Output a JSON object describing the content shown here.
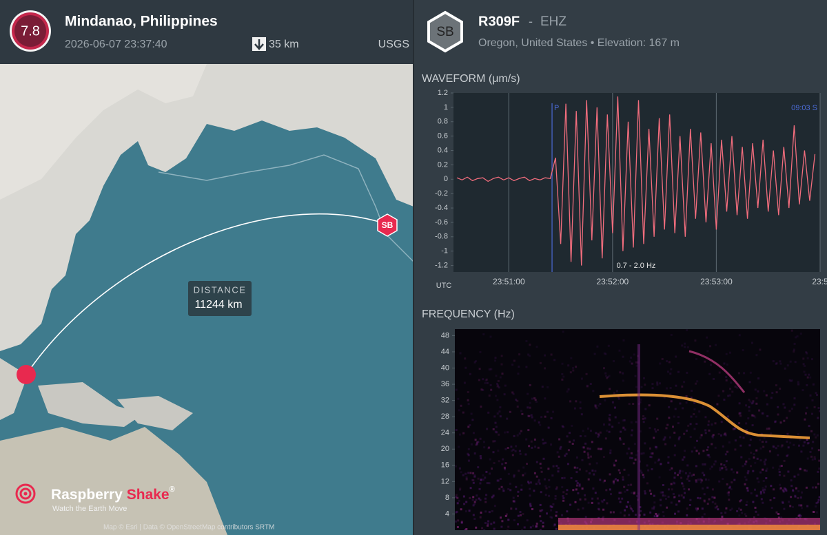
{
  "event": {
    "magnitude": "7.8",
    "location": "Mindanao, Philippines",
    "datetime": "2026-06-07 23:37:40",
    "depth": "35 km",
    "source": "USGS"
  },
  "station": {
    "badge": "SB",
    "code": "R309F",
    "separator": "-",
    "channel": "EHZ",
    "place": "Oregon, United States • Elevation: 167 m"
  },
  "map": {
    "distance_label": "DISTANCE",
    "distance": "11244 km",
    "station_marker": "SB",
    "logo_word_1": "Raspberry",
    "logo_word_2": "Shake",
    "logo_registered": "®",
    "tagline": "Watch the Earth Move",
    "attribution": "Map © Esri | Data © OpenStreetMap contributors SRTM"
  },
  "chart_data": [
    {
      "type": "line",
      "title": "WAVEFORM  (μm/s)",
      "x_axis_label": "UTC",
      "color": "#f26d7d",
      "grid": "x",
      "filter_label": "0.7 - 2.0 Hz",
      "p_label": "P",
      "p_x": 85885,
      "end_label": "09:03  S",
      "xlim": [
        85828,
        86040
      ],
      "xticks": [
        {
          "value": 85860,
          "label": "23:51:00"
        },
        {
          "value": 85920,
          "label": "23:52:00"
        },
        {
          "value": 85980,
          "label": "23:53:00"
        },
        {
          "value": 86040,
          "label": "23:5"
        }
      ],
      "ylim": [
        -1.29,
        1.2
      ],
      "yticks": [
        1.2,
        1,
        0.8,
        0.6,
        0.4,
        0.2,
        0,
        -0.2,
        -0.4,
        -0.6,
        -0.8,
        -1,
        -1.2
      ],
      "x": [
        85830,
        85833,
        85836,
        85839,
        85842,
        85845,
        85848,
        85851,
        85854,
        85857,
        85860,
        85863,
        85866,
        85869,
        85872,
        85875,
        85878,
        85881,
        85884,
        85887,
        85890,
        85893,
        85896,
        85899,
        85902,
        85905,
        85908,
        85911,
        85914,
        85917,
        85920,
        85923,
        85926,
        85929,
        85932,
        85935,
        85938,
        85941,
        85944,
        85947,
        85950,
        85953,
        85956,
        85959,
        85962,
        85965,
        85968,
        85971,
        85974,
        85977,
        85980,
        85983,
        85986,
        85989,
        85992,
        85995,
        85998,
        86001,
        86004,
        86007,
        86010,
        86013,
        86016,
        86019,
        86022,
        86025,
        86028,
        86031,
        86034,
        86037
      ],
      "values": [
        0.02,
        -0.01,
        0.03,
        -0.02,
        0.01,
        0.02,
        -0.03,
        0.01,
        0.03,
        -0.01,
        0.02,
        -0.02,
        0.01,
        0.03,
        -0.02,
        0.01,
        -0.01,
        0.02,
        0.01,
        0.3,
        -0.9,
        1.05,
        -1.15,
        0.95,
        -1.2,
        1.1,
        -0.85,
        1.0,
        -1.1,
        0.9,
        -0.75,
        1.15,
        -1.0,
        0.8,
        -0.95,
        1.1,
        -0.9,
        0.7,
        -0.8,
        0.85,
        -0.7,
        0.9,
        -0.75,
        0.6,
        -0.8,
        0.7,
        -0.55,
        0.65,
        -0.6,
        0.5,
        -0.7,
        0.55,
        -0.45,
        0.6,
        -0.5,
        0.45,
        -0.55,
        0.5,
        -0.4,
        0.55,
        -0.45,
        0.4,
        -0.5,
        0.45,
        -0.4,
        0.75,
        -0.35,
        0.4,
        -0.3,
        0.35
      ]
    },
    {
      "type": "spectrogram",
      "title": "FREQUENCY  (Hz)",
      "ylim": [
        0,
        49.6
      ],
      "yticks": [
        4,
        8,
        12,
        16,
        20,
        24,
        28,
        32,
        36,
        40,
        44,
        48
      ]
    }
  ]
}
